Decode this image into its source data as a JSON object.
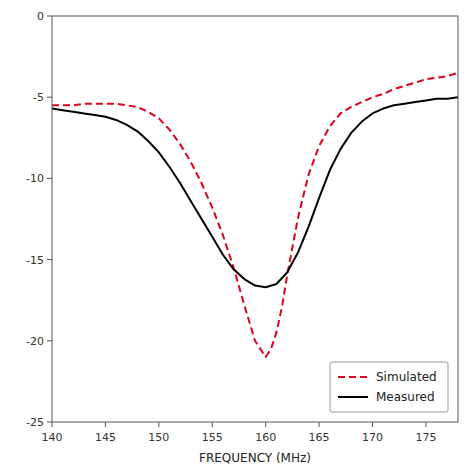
{
  "chart_data": {
    "type": "line",
    "xlabel": "FREQUENCY (MHz)",
    "xlim": [
      140,
      178
    ],
    "ylim": [
      -25,
      0
    ],
    "xticks": [
      140,
      145,
      150,
      155,
      160,
      165,
      170,
      175
    ],
    "yticks": [
      0,
      -5,
      -10,
      -15,
      -20,
      -25
    ],
    "grid": false,
    "legend": "lower right",
    "series": [
      {
        "name": "Simulated",
        "color": "#e0001a",
        "line_style": "dashed",
        "x": [
          140,
          141,
          142,
          143,
          144,
          145,
          146,
          147,
          148,
          149,
          150,
          151,
          152,
          153,
          154,
          155,
          156,
          157,
          158,
          159,
          160,
          160.5,
          161,
          161.5,
          162,
          163,
          164,
          165,
          166,
          167,
          168,
          169,
          170,
          171,
          172,
          173,
          174,
          175,
          176,
          177,
          178
        ],
        "values": [
          -5.5,
          -5.5,
          -5.5,
          -5.4,
          -5.4,
          -5.4,
          -5.4,
          -5.5,
          -5.6,
          -5.9,
          -6.3,
          -7.0,
          -7.9,
          -9.0,
          -10.3,
          -11.8,
          -13.5,
          -15.5,
          -17.8,
          -20.0,
          -21.0,
          -20.5,
          -19.5,
          -18.0,
          -16.0,
          -12.5,
          -9.8,
          -8.0,
          -6.8,
          -6.0,
          -5.6,
          -5.3,
          -5.0,
          -4.8,
          -4.5,
          -4.3,
          -4.1,
          -3.9,
          -3.8,
          -3.7,
          -3.5
        ]
      },
      {
        "name": "Measured",
        "color": "#000000",
        "line_style": "solid",
        "x": [
          140,
          141,
          142,
          143,
          144,
          145,
          146,
          147,
          148,
          149,
          150,
          151,
          152,
          153,
          154,
          155,
          156,
          157,
          158,
          159,
          160,
          161,
          162,
          163,
          164,
          165,
          166,
          167,
          168,
          169,
          170,
          171,
          172,
          173,
          174,
          175,
          176,
          177,
          178
        ],
        "values": [
          -5.7,
          -5.8,
          -5.9,
          -6.0,
          -6.1,
          -6.2,
          -6.4,
          -6.7,
          -7.1,
          -7.7,
          -8.4,
          -9.3,
          -10.3,
          -11.4,
          -12.5,
          -13.6,
          -14.7,
          -15.6,
          -16.2,
          -16.6,
          -16.7,
          -16.5,
          -15.8,
          -14.6,
          -13.0,
          -11.2,
          -9.5,
          -8.2,
          -7.2,
          -6.5,
          -6.0,
          -5.7,
          -5.5,
          -5.4,
          -5.3,
          -5.2,
          -5.1,
          -5.1,
          -5.0
        ]
      }
    ]
  }
}
